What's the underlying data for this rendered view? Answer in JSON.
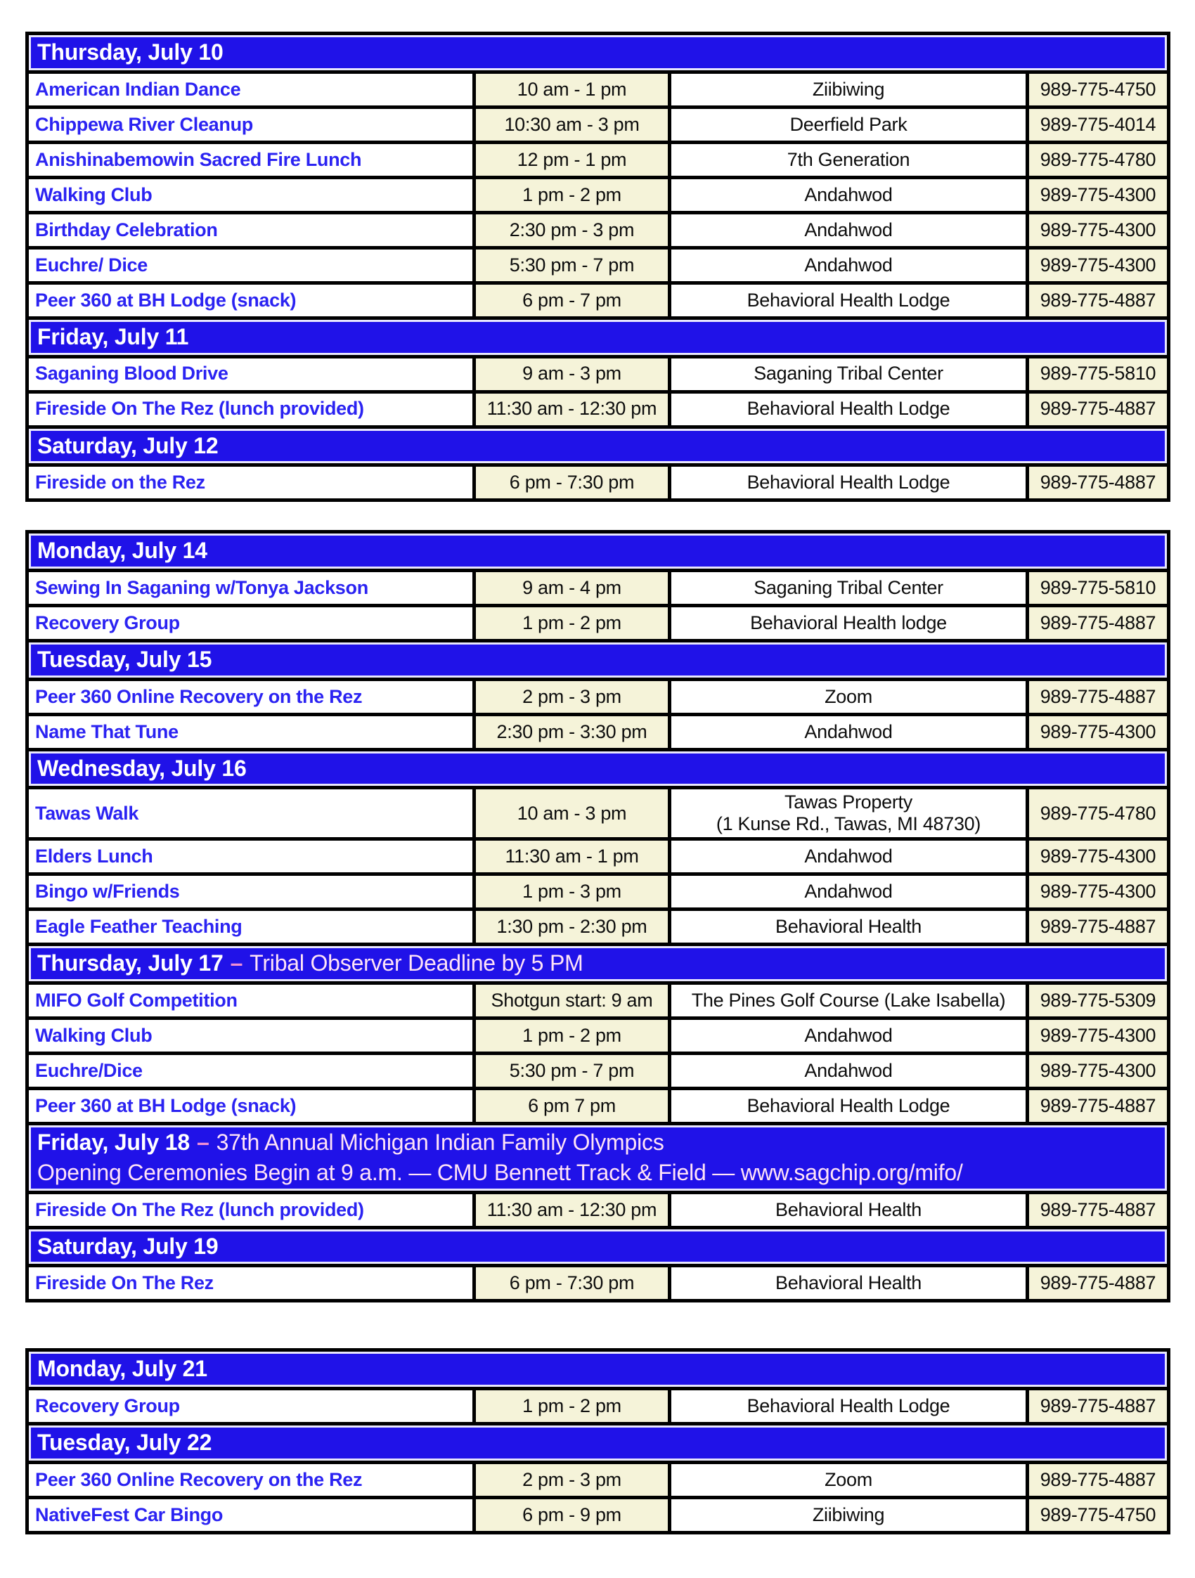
{
  "colors": {
    "day_header_bg": "#2012e8",
    "event_name_text": "#2b23f2",
    "time_phone_bg": "#f5f3d9",
    "grid_border": "#000000",
    "day_title_text": "#ffffff",
    "day_subtitle_text": "#ffe3f7",
    "dash_accent": "#f290d2"
  },
  "blocks": [
    {
      "rows": [
        {
          "type": "day",
          "title": "Thursday, July 10"
        },
        {
          "type": "event",
          "name": "American Indian Dance",
          "time": "10 am - 1 pm",
          "location": "Ziibiwing",
          "phone": "989-775-4750"
        },
        {
          "type": "event",
          "name": "Chippewa River Cleanup",
          "time": "10:30 am - 3 pm",
          "location": "Deerfield Park",
          "phone": "989-775-4014"
        },
        {
          "type": "event",
          "name": "Anishinabemowin Sacred Fire Lunch",
          "time": "12 pm - 1 pm",
          "location": "7th Generation",
          "phone": "989-775-4780"
        },
        {
          "type": "event",
          "name": "Walking Club",
          "time": "1 pm - 2 pm",
          "location": "Andahwod",
          "phone": "989-775-4300"
        },
        {
          "type": "event",
          "name": "Birthday Celebration",
          "time": "2:30 pm - 3 pm",
          "location": "Andahwod",
          "phone": "989-775-4300"
        },
        {
          "type": "event",
          "name": "Euchre/ Dice",
          "time": "5:30 pm - 7 pm",
          "location": "Andahwod",
          "phone": "989-775-4300"
        },
        {
          "type": "event",
          "name": "Peer 360 at BH Lodge (snack)",
          "time": "6 pm - 7 pm",
          "location": "Behavioral Health Lodge",
          "phone": "989-775-4887"
        },
        {
          "type": "day",
          "title": "Friday, July 11"
        },
        {
          "type": "event",
          "name": "Saganing Blood Drive",
          "time": "9 am - 3 pm",
          "location": "Saganing Tribal Center",
          "phone": "989-775-5810"
        },
        {
          "type": "event",
          "name": "Fireside On The Rez (lunch provided)",
          "time": "11:30 am - 12:30 pm",
          "location": "Behavioral Health Lodge",
          "phone": "989-775-4887"
        },
        {
          "type": "day",
          "title": "Saturday, July 12"
        },
        {
          "type": "event",
          "name": "Fireside on the Rez",
          "time": "6 pm - 7:30 pm",
          "location": "Behavioral Health Lodge",
          "phone": "989-775-4887"
        }
      ]
    },
    {
      "rows": [
        {
          "type": "day",
          "title": "Monday, July 14"
        },
        {
          "type": "event",
          "name": "Sewing In Saganing w/Tonya Jackson",
          "time": "9 am - 4 pm",
          "location": "Saganing Tribal Center",
          "phone": "989-775-5810"
        },
        {
          "type": "event",
          "name": "Recovery Group",
          "time": "1 pm - 2 pm",
          "location": "Behavioral Health lodge",
          "phone": "989-775-4887"
        },
        {
          "type": "day",
          "title": "Tuesday, July 15"
        },
        {
          "type": "event",
          "name": "Peer 360 Online Recovery on the Rez",
          "time": "2 pm - 3 pm",
          "location": "Zoom",
          "phone": "989-775-4887"
        },
        {
          "type": "event",
          "name": "Name That Tune",
          "time": "2:30 pm - 3:30 pm",
          "location": "Andahwod",
          "phone": "989-775-4300"
        },
        {
          "type": "day",
          "title": "Wednesday, July 16"
        },
        {
          "type": "event",
          "name": "Tawas Walk",
          "time": "10 am - 3 pm",
          "location": "Tawas Property\n(1 Kunse Rd., Tawas, MI 48730)",
          "phone": "989-775-4780"
        },
        {
          "type": "event",
          "name": "Elders Lunch",
          "time": "11:30 am - 1 pm",
          "location": "Andahwod",
          "phone": "989-775-4300"
        },
        {
          "type": "event",
          "name": "Bingo w/Friends",
          "time": "1 pm - 3 pm",
          "location": "Andahwod",
          "phone": "989-775-4300"
        },
        {
          "type": "event",
          "name": "Eagle Feather Teaching",
          "time": "1:30 pm - 2:30 pm",
          "location": "Behavioral Health",
          "phone": "989-775-4887"
        },
        {
          "type": "day",
          "title": "Thursday, July 17",
          "dash": "–",
          "subtitle": "Tribal Observer Deadline by 5 PM"
        },
        {
          "type": "event",
          "name": "MIFO Golf Competition",
          "time": "Shotgun start: 9 am",
          "location": "The Pines Golf Course (Lake Isabella)",
          "phone": "989-775-5309"
        },
        {
          "type": "event",
          "name": "Walking Club",
          "time": "1 pm - 2 pm",
          "location": "Andahwod",
          "phone": "989-775-4300"
        },
        {
          "type": "event",
          "name": "Euchre/Dice",
          "time": "5:30 pm - 7 pm",
          "location": "Andahwod",
          "phone": "989-775-4300"
        },
        {
          "type": "event",
          "name": "Peer 360 at BH Lodge (snack)",
          "time": "6 pm 7 pm",
          "location": "Behavioral Health Lodge",
          "phone": "989-775-4887"
        },
        {
          "type": "day",
          "title": "Friday, July 18",
          "dash": "–",
          "subtitle": "37th Annual Michigan Indian Family Olympics",
          "subtitle2": "Opening Ceremonies Begin at 9 a.m. — CMU Bennett Track & Field — www.sagchip.org/mifo/"
        },
        {
          "type": "event",
          "name": "Fireside On The Rez (lunch provided)",
          "time": "11:30 am - 12:30 pm",
          "location": "Behavioral Health",
          "phone": "989-775-4887"
        },
        {
          "type": "day",
          "title": "Saturday, July 19"
        },
        {
          "type": "event",
          "name": "Fireside On The Rez",
          "time": "6 pm - 7:30 pm",
          "location": "Behavioral Health",
          "phone": "989-775-4887"
        }
      ]
    },
    {
      "rows": [
        {
          "type": "day",
          "title": "Monday, July 21"
        },
        {
          "type": "event",
          "name": "Recovery Group",
          "time": "1 pm - 2 pm",
          "location": "Behavioral Health Lodge",
          "phone": "989-775-4887"
        },
        {
          "type": "day",
          "title": "Tuesday, July 22"
        },
        {
          "type": "event",
          "name": "Peer 360 Online Recovery on the Rez",
          "time": "2 pm - 3 pm",
          "location": "Zoom",
          "phone": "989-775-4887"
        },
        {
          "type": "event",
          "name": "NativeFest Car Bingo",
          "time": "6 pm - 9 pm",
          "location": "Ziibiwing",
          "phone": "989-775-4750"
        }
      ]
    }
  ]
}
